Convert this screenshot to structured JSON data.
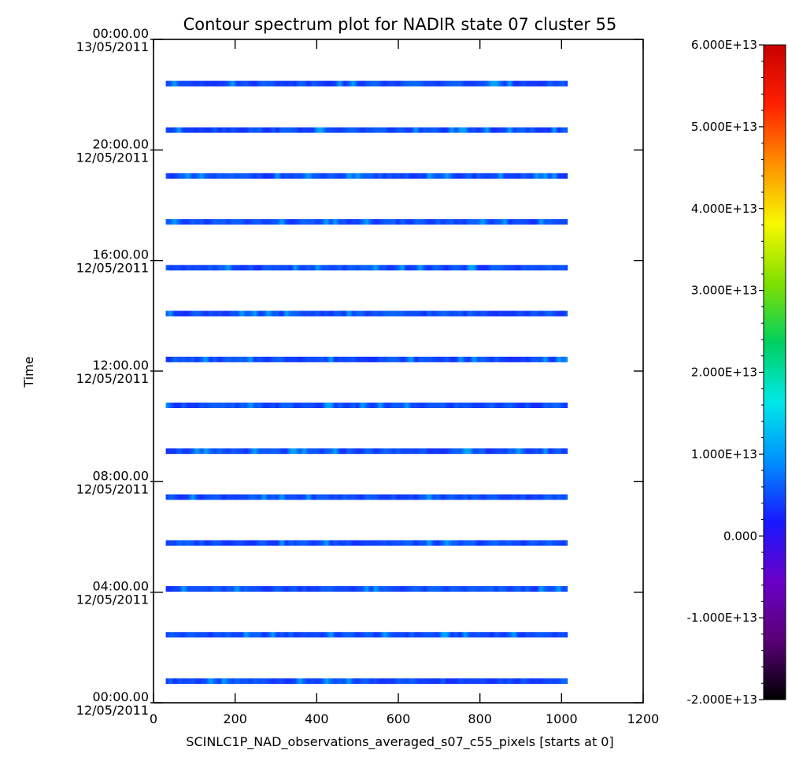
{
  "chart_data": {
    "type": "heatmap",
    "title": "Contour spectrum plot for NADIR state 07 cluster 55",
    "xlabel": "SCINLC1P_NAD_observations_averaged_s07_c55_pixels [starts at 0]",
    "ylabel": "Time",
    "x_range": [
      0,
      1200
    ],
    "x_ticks": [
      0,
      200,
      400,
      600,
      800,
      1000,
      1200
    ],
    "x_tick_labels": [
      "0",
      "200",
      "400",
      "600",
      "800",
      "1000",
      "1200"
    ],
    "y_range_hours": [
      0,
      24
    ],
    "y_ticks": [
      {
        "hours": 0,
        "time": "00:00.00",
        "date": "12/05/2011"
      },
      {
        "hours": 4,
        "time": "04:00.00",
        "date": "12/05/2011"
      },
      {
        "hours": 8,
        "time": "08:00.00",
        "date": "12/05/2011"
      },
      {
        "hours": 12,
        "time": "12:00.00",
        "date": "12/05/2011"
      },
      {
        "hours": 16,
        "time": "16:00.00",
        "date": "12/05/2011"
      },
      {
        "hours": 20,
        "time": "20:00.00",
        "date": "12/05/2011"
      },
      {
        "hours": 24,
        "time": "00:00.00",
        "date": "13/05/2011"
      }
    ],
    "pixel_range": [
      30,
      1015
    ],
    "observation_times_hours": [
      0.78,
      2.46,
      4.12,
      5.78,
      7.44,
      9.1,
      10.76,
      12.42,
      14.08,
      15.74,
      17.4,
      19.06,
      20.72,
      22.4
    ],
    "typical_value": 5000000000000,
    "colorbar": {
      "min": -20000000000000,
      "max": 60000000000000,
      "tick_values": [
        -20000000000000,
        -10000000000000,
        0,
        10000000000000,
        20000000000000,
        30000000000000,
        40000000000000,
        50000000000000,
        60000000000000
      ],
      "tick_labels": [
        "-2.000E+13",
        "-1.000E+13",
        "0.000",
        "1.000E+13",
        "2.000E+13",
        "3.000E+13",
        "4.000E+13",
        "5.000E+13",
        "6.000E+13"
      ],
      "colormap": [
        "#000000",
        "#5a0078",
        "#6a00c8",
        "#1818ff",
        "#0090ff",
        "#00e8e8",
        "#00d060",
        "#80e000",
        "#f8f800",
        "#ff9000",
        "#ff2000",
        "#c80000"
      ]
    },
    "grid": false
  }
}
